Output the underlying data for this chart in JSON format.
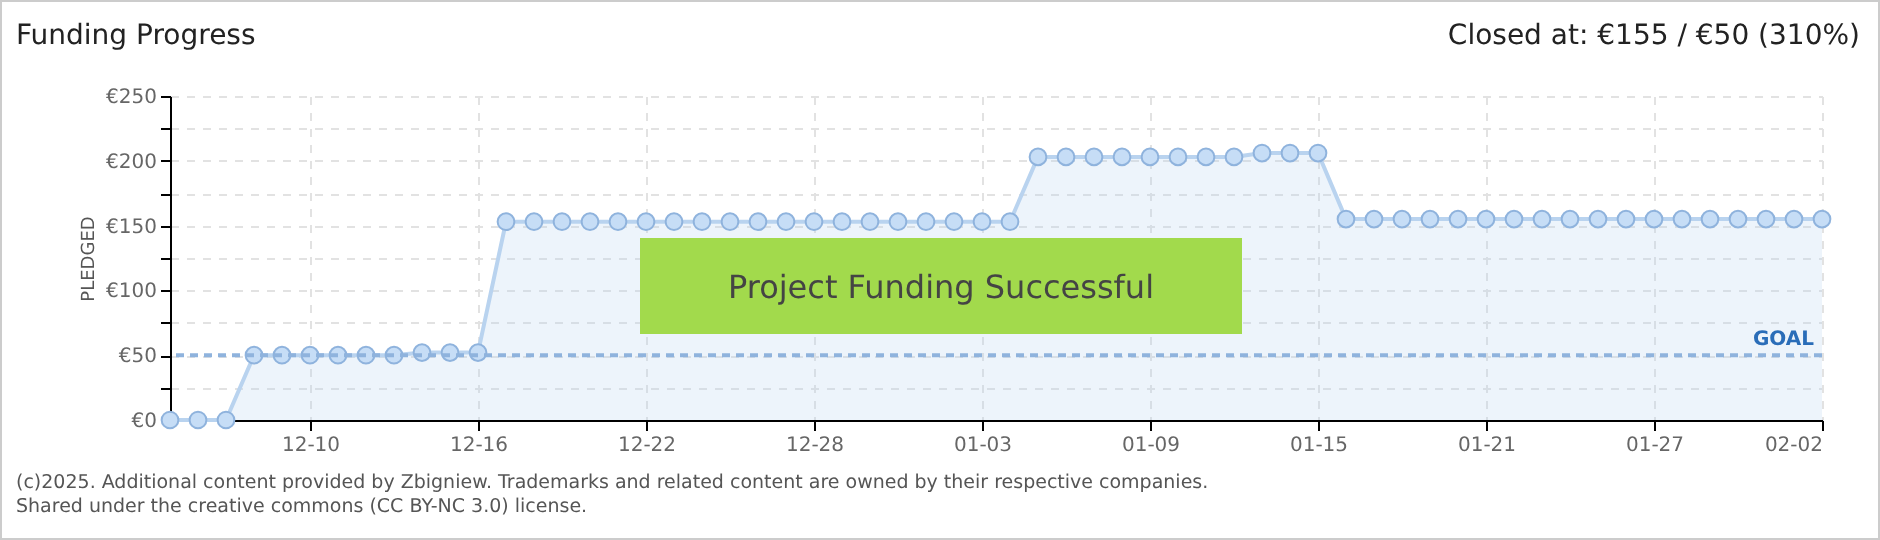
{
  "chart_data": {
    "type": "area",
    "title": "Funding Progress",
    "subtitle": "Closed at: €155 / €50 (310%)",
    "ylabel": "PLEDGED",
    "annotations": [
      "Project Funding Successful",
      "(c)2025. Additional content provided by Zbigniew. Trademarks and related content are owned by their respective companies.",
      "Shared under the creative commons (CC BY-NC 3.0) license."
    ],
    "x": [
      "2024-12-05",
      "2024-12-06",
      "2024-12-07",
      "2024-12-08",
      "2024-12-09",
      "2024-12-10",
      "2024-12-11",
      "2024-12-12",
      "2024-12-13",
      "2024-12-14",
      "2024-12-15",
      "2024-12-16",
      "2024-12-17",
      "2024-12-18",
      "2024-12-19",
      "2024-12-20",
      "2024-12-21",
      "2024-12-22",
      "2024-12-23",
      "2024-12-24",
      "2024-12-25",
      "2024-12-26",
      "2024-12-27",
      "2024-12-28",
      "2024-12-29",
      "2024-12-30",
      "2024-12-31",
      "2025-01-01",
      "2025-01-02",
      "2025-01-03",
      "2025-01-04",
      "2025-01-05",
      "2025-01-06",
      "2025-01-07",
      "2025-01-08",
      "2025-01-09",
      "2025-01-10",
      "2025-01-11",
      "2025-01-12",
      "2025-01-13",
      "2025-01-14",
      "2025-01-15",
      "2025-01-16",
      "2025-01-17",
      "2025-01-18",
      "2025-01-19",
      "2025-01-20",
      "2025-01-21",
      "2025-01-22",
      "2025-01-23",
      "2025-01-24",
      "2025-01-25",
      "2025-01-26",
      "2025-01-27",
      "2025-01-28",
      "2025-01-29",
      "2025-01-30",
      "2025-01-31",
      "2025-02-01",
      "2025-02-02"
    ],
    "values": [
      0,
      0,
      0,
      50,
      50,
      50,
      50,
      50,
      50,
      52,
      52,
      52,
      153,
      153,
      153,
      153,
      153,
      153,
      153,
      153,
      153,
      153,
      153,
      153,
      153,
      153,
      153,
      153,
      153,
      153,
      153,
      203,
      203,
      203,
      203,
      203,
      203,
      203,
      203,
      206,
      206,
      206,
      155,
      155,
      155,
      155,
      155,
      155,
      155,
      155,
      155,
      155,
      155,
      155,
      155,
      155,
      155,
      155,
      155,
      155
    ],
    "color": "#b9d3ef",
    "marker": "circle",
    "grid": true,
    "xlim": [
      "2024-12-05",
      "2025-02-02"
    ],
    "xticks": [
      {
        "value": "2024-12-10",
        "label": "12-10"
      },
      {
        "value": "2024-12-16",
        "label": "12-16"
      },
      {
        "value": "2024-12-22",
        "label": "12-22"
      },
      {
        "value": "2024-12-28",
        "label": "12-28"
      },
      {
        "value": "2025-01-03",
        "label": "01-03"
      },
      {
        "value": "2025-01-09",
        "label": "01-09"
      },
      {
        "value": "2025-01-15",
        "label": "01-15"
      },
      {
        "value": "2025-01-21",
        "label": "01-21"
      },
      {
        "value": "2025-01-27",
        "label": "01-27"
      },
      {
        "value": "2025-02-02",
        "label": "02-02"
      }
    ],
    "ylim": [
      0,
      250
    ],
    "yticks": [
      {
        "value": 0,
        "label": "€0"
      },
      {
        "value": 25,
        "label": null
      },
      {
        "value": 50,
        "label": "€50"
      },
      {
        "value": 75,
        "label": null
      },
      {
        "value": 100,
        "label": "€100"
      },
      {
        "value": 125,
        "label": null
      },
      {
        "value": 150,
        "label": "€150"
      },
      {
        "value": 175,
        "label": null
      },
      {
        "value": 200,
        "label": "€200"
      },
      {
        "value": 225,
        "label": null
      },
      {
        "value": 250,
        "label": "€250"
      }
    ],
    "ref_lines": [
      {
        "axis": "y",
        "value": 50,
        "label": "GOAL",
        "color": "#8fb3dd",
        "line_style": "dashed"
      }
    ]
  }
}
